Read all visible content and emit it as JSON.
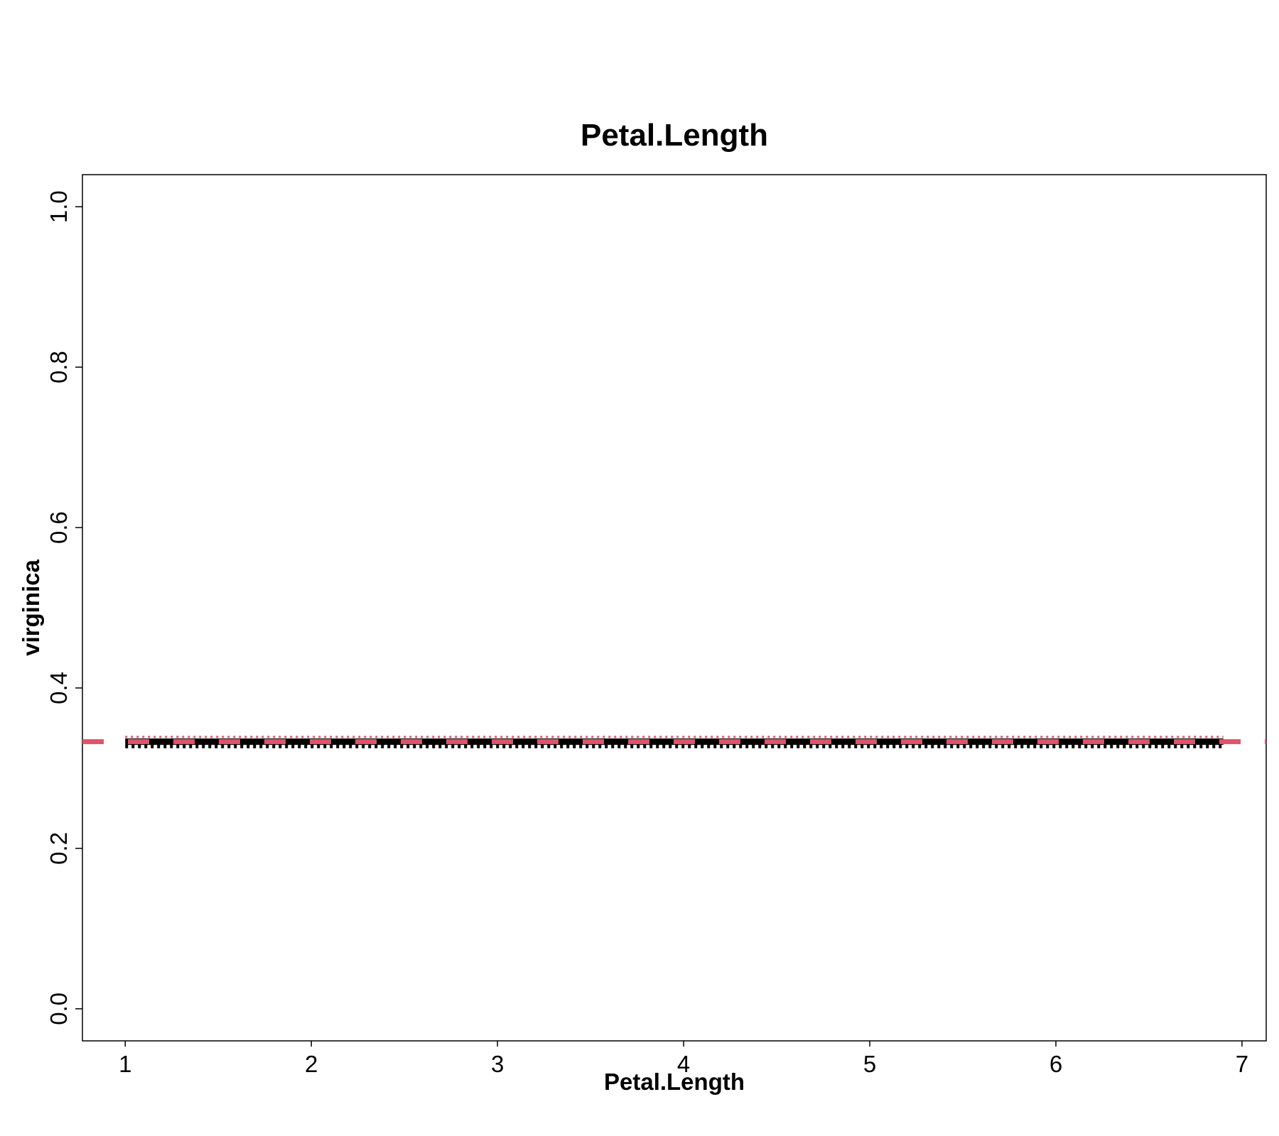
{
  "chart_data": {
    "type": "line",
    "title": "Petal.Length",
    "xlabel": "Petal.Length",
    "ylabel": "virginica",
    "xlim": [
      0.77,
      7.13
    ],
    "ylim": [
      -0.04,
      1.04
    ],
    "x_ticks": [
      1,
      2,
      3,
      4,
      5,
      6,
      7
    ],
    "y_ticks": [
      0.0,
      0.2,
      0.4,
      0.6,
      0.8,
      1.0
    ],
    "x_tick_labels": [
      "1",
      "2",
      "3",
      "4",
      "5",
      "6",
      "7"
    ],
    "y_tick_labels": [
      "0.0",
      "0.2",
      "0.4",
      "0.6",
      "0.8",
      "1.0"
    ],
    "grid": false,
    "legend": "none",
    "series": [
      {
        "style": "solid-thick",
        "color": "#000000",
        "x": [
          1.0,
          6.9
        ],
        "y": [
          0.333,
          0.333
        ]
      },
      {
        "style": "dotted-upper-band",
        "color": "#DF536B",
        "x": [
          1.0,
          6.9
        ],
        "y": [
          0.339,
          0.339
        ]
      },
      {
        "style": "dotted-lower-band",
        "color": "#000000",
        "x": [
          1.0,
          6.9
        ],
        "y": [
          0.327,
          0.327
        ]
      },
      {
        "style": "dashed-reference",
        "color": "#DF536B",
        "x": [
          0.77,
          7.13
        ],
        "y": [
          0.333,
          0.333
        ]
      }
    ]
  }
}
